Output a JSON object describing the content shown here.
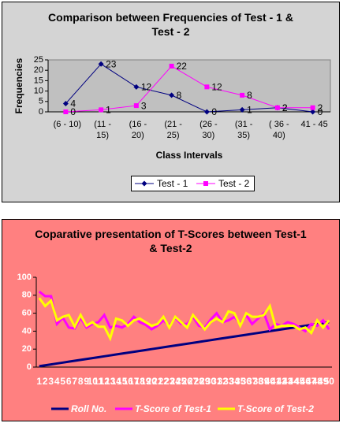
{
  "chart_data": [
    {
      "type": "line",
      "title": "Comparison between Frequencies of Test - 1 & Test - 2",
      "xlabel": "Class Intervals",
      "ylabel": "Frequencies",
      "categories": [
        "(6 - 10)",
        "(11 - 15)",
        "(16 - 20)",
        "(21 - 25)",
        "(26 - 30)",
        "(31 - 35)",
        "( 36 - 40)",
        "41 - 45"
      ],
      "series": [
        {
          "name": "Test - 1",
          "color": "#000080",
          "marker": "diamond",
          "values": [
            4,
            23,
            12,
            8,
            0,
            1,
            2,
            0
          ]
        },
        {
          "name": "Test - 2",
          "color": "#ff00ff",
          "marker": "square",
          "values": [
            0,
            1,
            3,
            22,
            12,
            8,
            2,
            2
          ]
        }
      ],
      "ylim": [
        0,
        25
      ],
      "yticks": [
        0,
        5,
        10,
        15,
        20,
        25
      ],
      "data_labels": true,
      "legend": "bottom",
      "grid": false
    },
    {
      "type": "line",
      "title": "Coparative presentation of T-Scores between Test-1 & Test-2",
      "categories": [
        1,
        2,
        3,
        4,
        5,
        6,
        7,
        8,
        9,
        10,
        11,
        12,
        13,
        14,
        15,
        16,
        17,
        18,
        19,
        20,
        21,
        22,
        23,
        24,
        25,
        26,
        27,
        28,
        29,
        30,
        31,
        32,
        33,
        34,
        35,
        36,
        37,
        38,
        39,
        40,
        41,
        42,
        43,
        44,
        45,
        46,
        47,
        48,
        49,
        50
      ],
      "series": [
        {
          "name": "Roll No.",
          "color": "#000080",
          "values": [
            1,
            2,
            3,
            4,
            5,
            6,
            7,
            8,
            9,
            10,
            11,
            12,
            13,
            14,
            15,
            16,
            17,
            18,
            19,
            20,
            21,
            22,
            23,
            24,
            25,
            26,
            27,
            28,
            29,
            30,
            31,
            32,
            33,
            34,
            35,
            36,
            37,
            38,
            39,
            40,
            41,
            42,
            43,
            44,
            45,
            46,
            47,
            48,
            49,
            50
          ]
        },
        {
          "name": "T-Score of Test-1",
          "color": "#ff00ff",
          "values": [
            84,
            79,
            79,
            48,
            55,
            44,
            43,
            55,
            44,
            48,
            50,
            58,
            44,
            46,
            44,
            48,
            56,
            50,
            47,
            42,
            46,
            52,
            46,
            55,
            48,
            48,
            56,
            46,
            44,
            53,
            60,
            50,
            52,
            56,
            48,
            58,
            48,
            54,
            60,
            42,
            48,
            46,
            50,
            48,
            44,
            40,
            48,
            46,
            52,
            42
          ]
        },
        {
          "name": "T-Score of Test-2",
          "color": "#ffff00",
          "values": [
            77,
            68,
            74,
            52,
            56,
            58,
            45,
            58,
            46,
            50,
            45,
            45,
            32,
            54,
            52,
            46,
            52,
            54,
            50,
            46,
            48,
            56,
            44,
            56,
            50,
            44,
            58,
            50,
            42,
            50,
            54,
            50,
            62,
            60,
            46,
            60,
            56,
            56,
            58,
            68,
            44,
            46,
            46,
            46,
            42,
            44,
            38,
            52,
            44,
            52
          ]
        }
      ],
      "ylim": [
        0,
        100
      ],
      "yticks": [
        0,
        20,
        40,
        60,
        80,
        100
      ],
      "data_labels": false,
      "legend": "bottom",
      "grid": false
    }
  ]
}
